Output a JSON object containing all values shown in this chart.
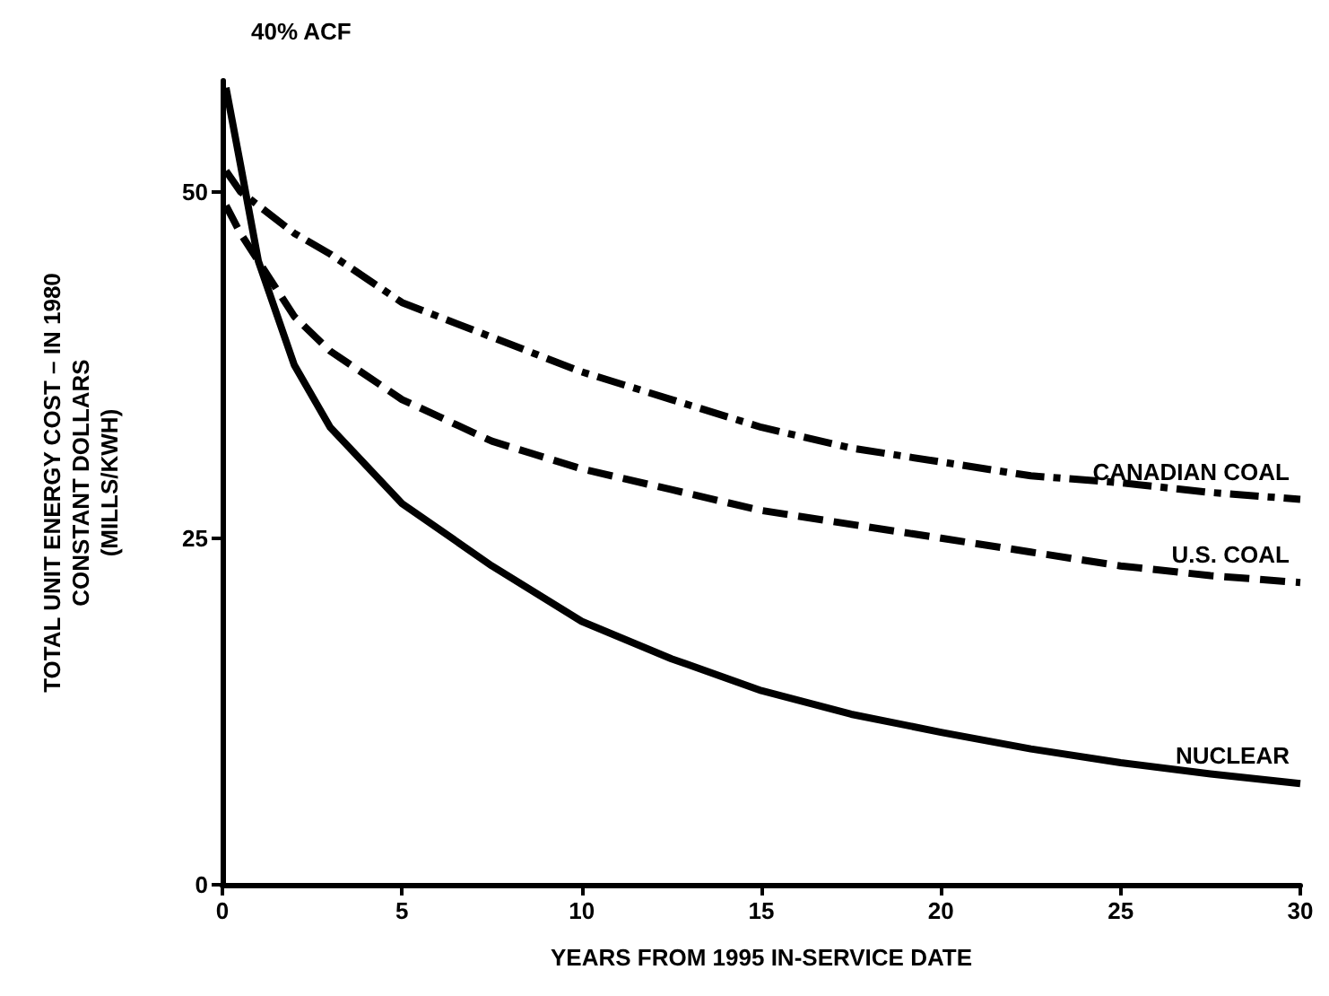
{
  "chart_data": {
    "type": "line",
    "title": "40% ACF",
    "xlabel": "YEARS FROM 1995 IN-SERVICE DATE",
    "ylabel": "TOTAL UNIT ENERGY COST – IN 1980\nCONSTANT DOLLARS\n(MILLS/KWH)",
    "x": [
      0.1,
      0.5,
      1,
      2,
      3,
      5,
      7.5,
      10,
      12.5,
      15,
      17.5,
      20,
      22.5,
      25,
      27.5,
      30
    ],
    "series": [
      {
        "name": "CANADIAN COAL",
        "color": "#000000",
        "line_style": "dashdot",
        "values": [
          51.5,
          50,
          49,
          47,
          45.5,
          42,
          39.5,
          37,
          35,
          33,
          31.5,
          30.5,
          29.5,
          29,
          28.3,
          27.8
        ]
      },
      {
        "name": "U.S. COAL",
        "color": "#000000",
        "line_style": "dashed",
        "values": [
          49,
          47,
          45,
          41,
          38.5,
          35,
          32,
          30,
          28.5,
          27,
          26,
          25,
          24,
          23,
          22.3,
          21.8
        ]
      },
      {
        "name": "NUCLEAR",
        "color": "#000000",
        "line_style": "solid",
        "values": [
          57.5,
          52,
          45,
          37.5,
          33,
          27.5,
          23,
          19,
          16.3,
          14,
          12.3,
          11,
          9.8,
          8.8,
          8,
          7.3
        ]
      }
    ],
    "xlim": [
      0,
      30
    ],
    "xticks": [
      0,
      5,
      10,
      15,
      20,
      25,
      30
    ],
    "ylim": [
      0,
      58
    ],
    "yticks": [
      0,
      25,
      50
    ],
    "grid": false,
    "legend": false,
    "marker": "none"
  }
}
